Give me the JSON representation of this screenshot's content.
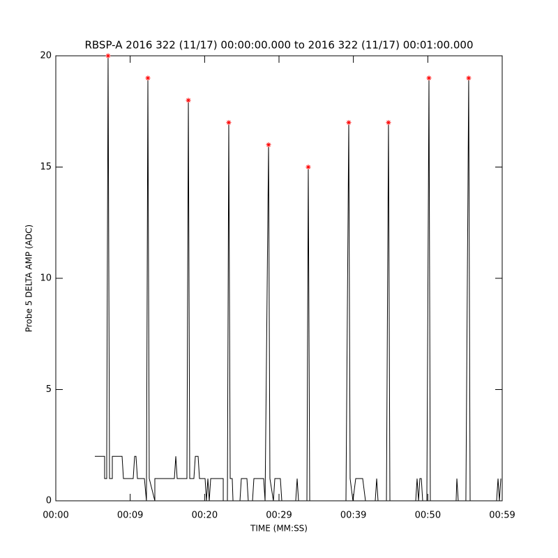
{
  "chart_data": {
    "type": "line",
    "title": "RBSP-A 2016 322 (11/17) 00:00:00.000 to 2016 322 (11/17) 00:01:00.000",
    "x_label": "TIME (MM:SS)",
    "y_label": "Probe 5 DELTA AMP (ADC)",
    "xlim": [
      0,
      59
    ],
    "xticks": [
      {
        "value": 0,
        "label": "00:00"
      },
      {
        "value": 9.83,
        "label": "00:09"
      },
      {
        "value": 19.67,
        "label": "00:20"
      },
      {
        "value": 29.5,
        "label": "00:29"
      },
      {
        "value": 39.33,
        "label": "00:39"
      },
      {
        "value": 49.17,
        "label": "00:50"
      },
      {
        "value": 59,
        "label": "00:59"
      }
    ],
    "ylim": [
      0,
      20
    ],
    "yticks": [
      0,
      5,
      10,
      15,
      20
    ],
    "series": [
      {
        "style": "line",
        "color": "#000000",
        "x": [
          5.16,
          6.45,
          6.45,
          6.73,
          6.73,
          6.91,
          7.1,
          7.47,
          7.47,
          8.76,
          8.94,
          10.23,
          10.42,
          10.6,
          10.79,
          11.71,
          11.98,
          12.17,
          12.35,
          13.09,
          13.09,
          15.67,
          15.86,
          16.04,
          17.33,
          17.52,
          17.7,
          18.25,
          18.44,
          18.81,
          18.99,
          19.73,
          19.91,
          20.1,
          20.28,
          20.47,
          22.13,
          22.13,
          22.68,
          22.86,
          23.05,
          23.32,
          23.42,
          24.34,
          24.52,
          25.26,
          25.44,
          26.0,
          26.18,
          27.47,
          27.66,
          28.12,
          28.3,
          28.76,
          28.95,
          29.68,
          29.87,
          31.71,
          31.9,
          32.08,
          33.19,
          33.37,
          33.56,
          38.35,
          38.72,
          38.9,
          39.27,
          39.64,
          40.56,
          40.93,
          42.22,
          42.41,
          42.59,
          43.7,
          43.97,
          44.16,
          47.57,
          47.75,
          47.94,
          48.12,
          48.31,
          48.49,
          49.04,
          49.32,
          49.5,
          52.91,
          53.01,
          53.19,
          54.2,
          54.57,
          54.76,
          58.26,
          58.45,
          58.63,
          58.82
        ],
        "values": [
          2,
          2,
          1,
          1,
          2,
          20,
          1,
          1,
          2,
          2,
          1,
          1,
          2,
          2,
          1,
          1,
          0,
          19,
          1,
          0,
          1,
          1,
          2,
          1,
          1,
          18,
          1,
          1,
          2,
          2,
          1,
          1,
          0,
          1,
          0,
          1,
          1,
          0,
          0,
          17,
          1,
          1,
          0,
          0,
          1,
          1,
          0,
          0,
          1,
          1,
          0,
          16,
          1,
          0,
          1,
          1,
          0,
          0,
          1,
          0,
          0,
          15,
          0,
          0,
          17,
          1,
          0,
          1,
          1,
          0,
          0,
          1,
          0,
          0,
          17,
          0,
          0,
          1,
          0,
          1,
          1,
          0,
          0,
          19,
          0,
          0,
          1,
          0,
          0,
          19,
          0,
          0,
          1,
          0,
          1
        ]
      },
      {
        "style": "markers",
        "color": "#ff0000",
        "x": [
          6.91,
          12.17,
          17.52,
          22.86,
          28.12,
          33.37,
          38.72,
          43.97,
          49.32,
          54.57
        ],
        "values": [
          20,
          19,
          18,
          17,
          16,
          15,
          17,
          17,
          19,
          19
        ]
      }
    ]
  }
}
